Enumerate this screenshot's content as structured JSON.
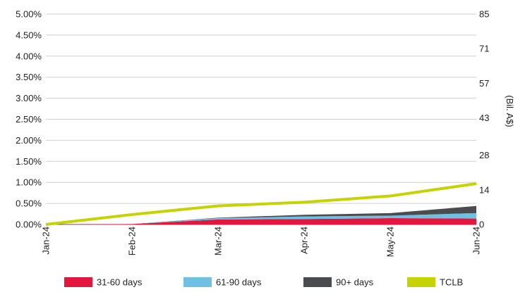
{
  "chart_data": {
    "type": "area",
    "categories": [
      "Jan-24",
      "Feb-24",
      "Mar-24",
      "Apr-24",
      "May-24",
      "Jun-24"
    ],
    "series": [
      {
        "name": "31-60 days",
        "kind": "stacked-area",
        "axis": "left",
        "color": "#e3173e",
        "values": [
          0.0,
          0.01,
          0.12,
          0.13,
          0.15,
          0.14
        ]
      },
      {
        "name": "61-90 days",
        "kind": "stacked-area",
        "axis": "left",
        "color": "#6ec1e4",
        "values": [
          0.0,
          0.0,
          0.03,
          0.06,
          0.06,
          0.13
        ]
      },
      {
        "name": "90+ days",
        "kind": "stacked-area",
        "axis": "left",
        "color": "#4a4c4f",
        "values": [
          0.0,
          0.0,
          0.01,
          0.04,
          0.06,
          0.17
        ]
      },
      {
        "name": "TCLB",
        "kind": "line",
        "axis": "right",
        "color": "#c5d300",
        "values": [
          0.0,
          4.0,
          7.5,
          9.0,
          11.5,
          16.5
        ]
      }
    ],
    "y_left": {
      "min": 0,
      "max": 5,
      "ticks": [
        0,
        0.5,
        1,
        1.5,
        2,
        2.5,
        3,
        3.5,
        4,
        4.5,
        5
      ],
      "tick_labels": [
        "0.00%",
        "0.50%",
        "1.00%",
        "1.50%",
        "2.00%",
        "2.50%",
        "3.00%",
        "3.50%",
        "4.00%",
        "4.50%",
        "5.00%"
      ]
    },
    "y_right": {
      "min": 0,
      "max": 85,
      "label": "(Bil. A$)",
      "ticks": [
        0,
        14,
        28,
        43,
        57,
        71,
        85
      ],
      "tick_labels": [
        "0",
        "14",
        "28",
        "43",
        "57",
        "71",
        "85"
      ]
    },
    "grid": true,
    "legend_position": "bottom"
  }
}
